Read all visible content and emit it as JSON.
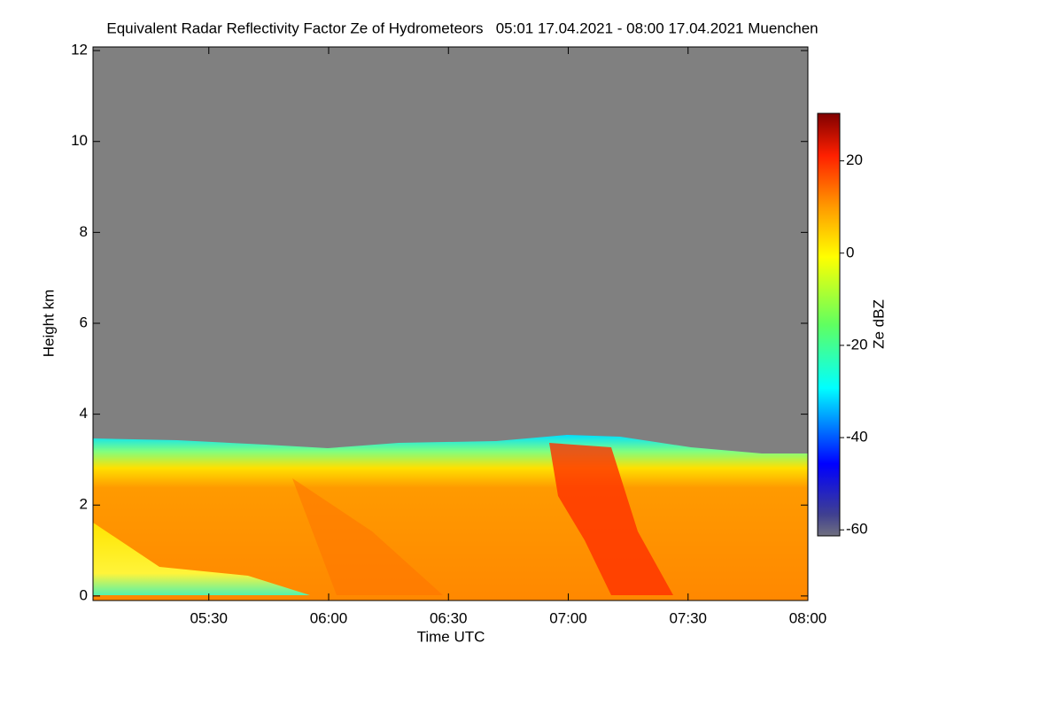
{
  "chart_data": {
    "type": "heatmap",
    "title": "Equivalent Radar Reflectivity Factor Ze of Hydrometeors   05:01 17.04.2021 - 08:00 17.04.2021 Muenchen",
    "xlabel": "Time UTC",
    "ylabel": "Height km",
    "xlim": [
      301,
      480
    ],
    "xticks": [
      {
        "value": 330,
        "label": "05:30"
      },
      {
        "value": 360,
        "label": "06:00"
      },
      {
        "value": 390,
        "label": "06:30"
      },
      {
        "value": 420,
        "label": "07:00"
      },
      {
        "value": 450,
        "label": "07:30"
      },
      {
        "value": 480,
        "label": "08:00"
      }
    ],
    "ylim": [
      -0.1,
      12.08
    ],
    "yticks": [
      0,
      2,
      4,
      6,
      8,
      10,
      12
    ],
    "colorbar": {
      "label": "Ze dBZ",
      "lim": [
        -61.3,
        30.3
      ],
      "ticks": [
        -60,
        -40,
        -20,
        0,
        20
      ]
    }
  }
}
